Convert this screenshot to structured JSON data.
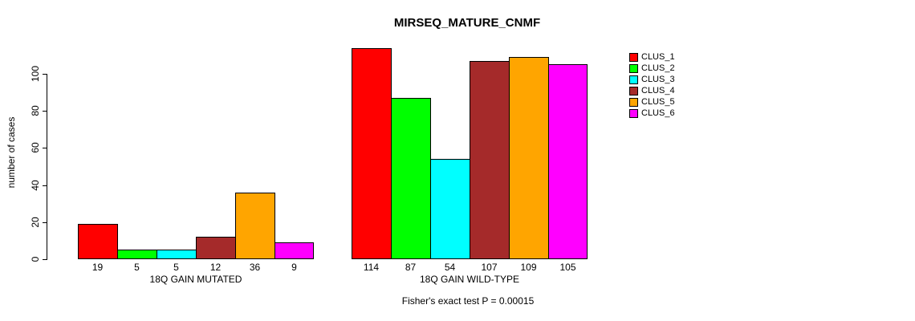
{
  "figure": {
    "title": "MIRSEQ_MATURE_CNMF"
  },
  "y_axis": {
    "label": "number of cases",
    "ticks": [
      0,
      20,
      40,
      60,
      80,
      100
    ]
  },
  "legend": {
    "entries": [
      {
        "label": "CLUS_1",
        "color": "#FF0000"
      },
      {
        "label": "CLUS_2",
        "color": "#00FF00"
      },
      {
        "label": "CLUS_3",
        "color": "#00FFFF"
      },
      {
        "label": "CLUS_4",
        "color": "#A52A2A"
      },
      {
        "label": "CLUS_5",
        "color": "#FFA500"
      },
      {
        "label": "CLUS_6",
        "color": "#FF00FF"
      }
    ]
  },
  "chart_data": {
    "type": "bar",
    "title": "MIRSEQ_MATURE_CNMF",
    "ylabel": "number of cases",
    "ylim": [
      0,
      115
    ],
    "grid": false,
    "legend_position": "right",
    "legend_entries": [
      "CLUS_1",
      "CLUS_2",
      "CLUS_3",
      "CLUS_4",
      "CLUS_5",
      "CLUS_6"
    ],
    "series_colors": [
      "#FF0000",
      "#00FF00",
      "#00FFFF",
      "#A52A2A",
      "#FFA500",
      "#FF00FF"
    ],
    "groups": [
      {
        "xlabel": "18Q GAIN MUTATED",
        "bar_labels": [
          "19",
          "5",
          "5",
          "12",
          "36",
          "9"
        ],
        "values": [
          19,
          5,
          5,
          12,
          36,
          9
        ]
      },
      {
        "xlabel": "18Q GAIN WILD-TYPE",
        "bar_labels": [
          "114",
          "87",
          "54",
          "107",
          "109",
          "105"
        ],
        "values": [
          114,
          87,
          54,
          107,
          109,
          105
        ]
      }
    ],
    "annotation": "Fisher's exact test P = 0.00015"
  }
}
